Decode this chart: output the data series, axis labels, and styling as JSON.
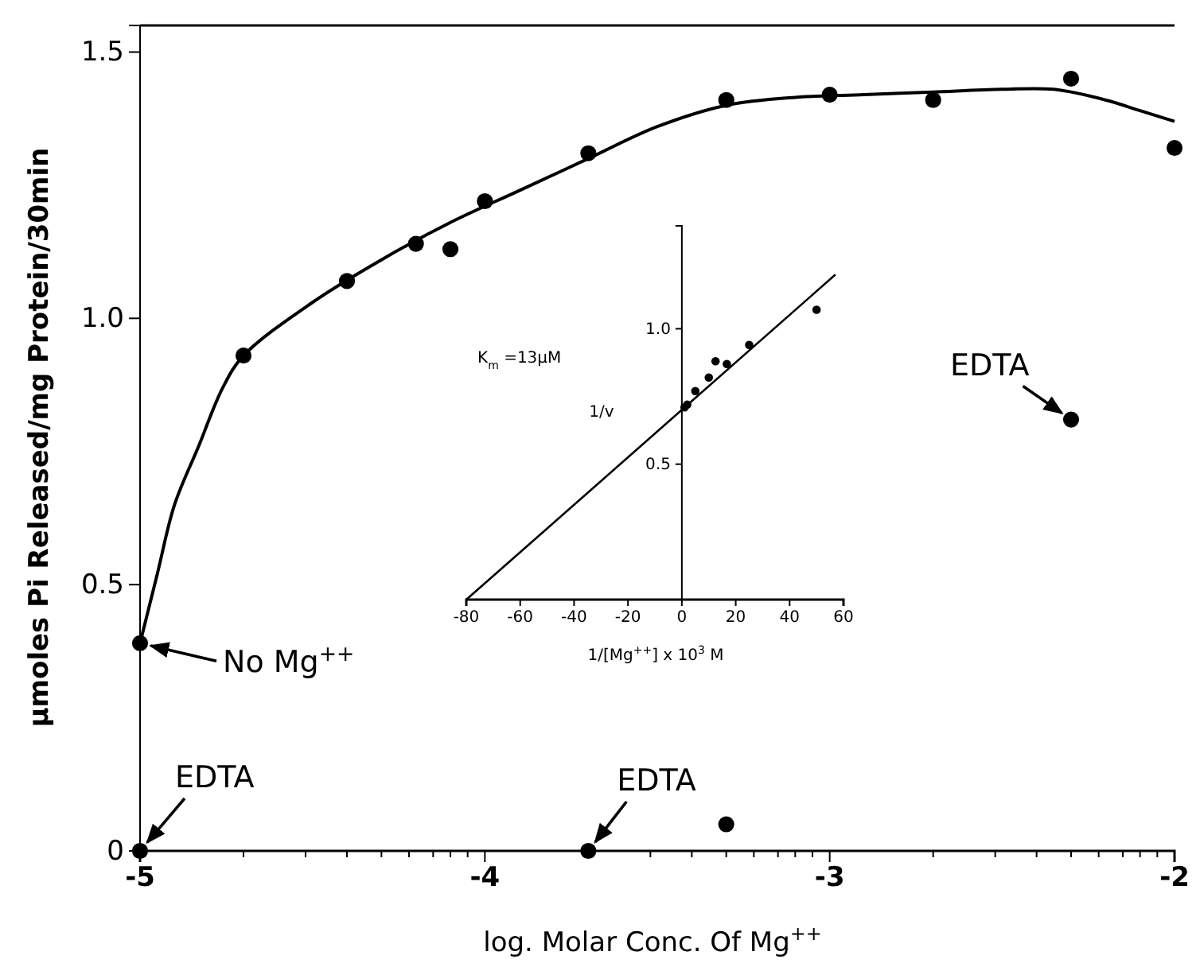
{
  "chart_data": [
    {
      "type": "scatter",
      "xlabel": "log. Molar Conc. Of Mg$^{++}$",
      "ylabel": "μmoles Pi Released/mg Protein/30min",
      "xlim": [
        -5,
        -2
      ],
      "ylim": [
        0,
        1.55
      ],
      "xticks": [
        -5,
        {
          "value": -4.7,
          "label": null
        },
        {
          "value": -4.52,
          "label": null
        },
        {
          "value": -4.4,
          "label": null
        },
        {
          "value": -4.3,
          "label": null
        },
        {
          "value": -4.22,
          "label": null
        },
        {
          "value": -4.15,
          "label": null
        },
        {
          "value": -4.1,
          "label": null
        },
        {
          "value": -4.05,
          "label": null
        },
        -4,
        {
          "value": -3.7,
          "label": null
        },
        {
          "value": -3.52,
          "label": null
        },
        {
          "value": -3.4,
          "label": null
        },
        {
          "value": -3.3,
          "label": null
        },
        {
          "value": -3.22,
          "label": null
        },
        {
          "value": -3.15,
          "label": null
        },
        {
          "value": -3.1,
          "label": null
        },
        {
          "value": -3.05,
          "label": null
        },
        -3,
        {
          "value": -2.7,
          "label": null
        },
        {
          "value": -2.52,
          "label": null
        },
        {
          "value": -2.4,
          "label": null
        },
        {
          "value": -2.3,
          "label": null
        },
        {
          "value": -2.22,
          "label": null
        },
        {
          "value": -2.15,
          "label": null
        },
        {
          "value": -2.1,
          "label": null
        },
        {
          "value": -2.05,
          "label": null
        },
        -2
      ],
      "yticks": [
        0,
        0.5,
        {
          "value": 1.0,
          "label": "1.0"
        },
        1.5
      ],
      "grid": false,
      "series": [
        {
          "type": "line",
          "marker": "none",
          "color": "#000000",
          "x": [
            -5,
            -4.95,
            -4.9,
            -4.83,
            -4.76,
            -4.7,
            -4.5,
            -4.3,
            -4.1,
            -3.9,
            -3.7,
            -3.5,
            -3.3,
            -3.1,
            -2.9,
            -2.7,
            -2.5,
            -2.35,
            -2.2,
            -2.1,
            -2.0
          ],
          "values": [
            0.39,
            0.52,
            0.65,
            0.76,
            0.87,
            0.93,
            1.03,
            1.11,
            1.18,
            1.24,
            1.3,
            1.36,
            1.4,
            1.415,
            1.42,
            1.425,
            1.43,
            1.43,
            1.41,
            1.39,
            1.37
          ]
        },
        {
          "marker": "circle",
          "color": "#000000",
          "x": [
            -4.7,
            -4.4,
            -4.2,
            -4.1,
            -4.0,
            -3.7,
            -3.3,
            -3.0,
            -2.7,
            -2.3,
            -2.0,
            -5,
            -2.3,
            -5,
            -3.7,
            -3.3
          ],
          "values": [
            0.93,
            1.07,
            1.14,
            1.13,
            1.22,
            1.31,
            1.41,
            1.42,
            1.41,
            1.45,
            1.32,
            0.39,
            0.81,
            0,
            0,
            0.05
          ]
        }
      ],
      "annotations": [
        {
          "text": "No Mg$^{++}$",
          "x": -5,
          "y": 0.39
        },
        {
          "text": "EDTA",
          "x": -5,
          "y": 0
        },
        {
          "text": "EDTA",
          "x": -3.7,
          "y": 0
        },
        {
          "text": "EDTA",
          "x": -2.3,
          "y": 0.81
        }
      ]
    },
    {
      "type": "scatter",
      "xlabel": "1/[Mg$^{++}$] x 10$^{3}$ M",
      "ylabel": "1/v",
      "xlim": [
        -80,
        60
      ],
      "ylim": [
        0,
        1.38
      ],
      "xticks": [
        -80,
        -60,
        -40,
        -20,
        0,
        20,
        40,
        60
      ],
      "yticks": [
        0.5,
        {
          "value": 1.0,
          "label": "1.0"
        }
      ],
      "grid": false,
      "series": [
        {
          "type": "line",
          "marker": "none",
          "color": "#000000",
          "x": [
            -80,
            57
          ],
          "values": [
            0,
            1.2
          ]
        },
        {
          "marker": "circle",
          "color": "#000000",
          "x": [
            1,
            2,
            5,
            10,
            12.5,
            16.7,
            25,
            50
          ],
          "values": [
            0.71,
            0.72,
            0.77,
            0.82,
            0.88,
            0.87,
            0.94,
            1.07
          ]
        }
      ],
      "annotations": [
        "K$_{m}$ =13μM"
      ]
    }
  ]
}
